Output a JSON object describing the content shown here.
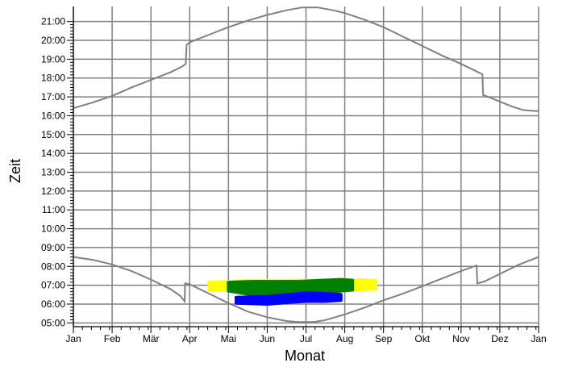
{
  "chart_data": {
    "type": "line",
    "xlabel": "Monat",
    "ylabel": "Zeit",
    "x_ticks": [
      "Jan",
      "Feb",
      "Mär",
      "Apr",
      "Mai",
      "Jun",
      "Jul",
      "Aug",
      "Sep",
      "Okt",
      "Nov",
      "Dez",
      "Jan"
    ],
    "y_ticks": [
      "05:00",
      "06:00",
      "07:00",
      "08:00",
      "09:00",
      "10:00",
      "11:00",
      "12:00",
      "13:00",
      "14:00",
      "15:00",
      "16:00",
      "17:00",
      "18:00",
      "19:00",
      "20:00",
      "21:00"
    ],
    "xlim": [
      0,
      12
    ],
    "ylim": [
      4.8,
      21.8
    ],
    "grid": true,
    "colors": {
      "line": "#808080",
      "grid": "#808080",
      "yellow": "#ffff00",
      "green": "#008000",
      "blue": "#0000ff"
    },
    "series": [
      {
        "kind": "line",
        "values": [
          [
            0.0,
            16.4
          ],
          [
            0.5,
            16.7
          ],
          [
            1.0,
            17.05
          ],
          [
            1.5,
            17.5
          ],
          [
            2.0,
            17.9
          ],
          [
            2.5,
            18.3
          ],
          [
            2.8,
            18.6
          ],
          [
            2.9,
            18.75
          ],
          [
            2.92,
            19.75
          ],
          [
            3.0,
            19.9
          ],
          [
            3.5,
            20.3
          ],
          [
            4.0,
            20.7
          ],
          [
            4.5,
            21.05
          ],
          [
            5.0,
            21.35
          ],
          [
            5.5,
            21.6
          ],
          [
            5.9,
            21.75
          ],
          [
            6.3,
            21.75
          ],
          [
            6.7,
            21.6
          ],
          [
            7.0,
            21.45
          ],
          [
            7.5,
            21.1
          ],
          [
            8.0,
            20.7
          ],
          [
            8.5,
            20.2
          ],
          [
            9.0,
            19.7
          ],
          [
            9.5,
            19.2
          ],
          [
            10.0,
            18.75
          ],
          [
            10.3,
            18.45
          ],
          [
            10.55,
            18.2
          ],
          [
            10.57,
            17.1
          ],
          [
            10.7,
            17.0
          ],
          [
            11.0,
            16.75
          ],
          [
            11.3,
            16.5
          ],
          [
            11.6,
            16.3
          ],
          [
            11.9,
            16.25
          ],
          [
            12.0,
            16.25
          ]
        ]
      },
      {
        "kind": "line",
        "values": [
          [
            0.0,
            8.5
          ],
          [
            0.5,
            8.35
          ],
          [
            1.0,
            8.1
          ],
          [
            1.5,
            7.75
          ],
          [
            2.0,
            7.3
          ],
          [
            2.5,
            6.8
          ],
          [
            2.75,
            6.45
          ],
          [
            2.87,
            6.15
          ],
          [
            2.88,
            7.1
          ],
          [
            3.0,
            7.05
          ],
          [
            3.5,
            6.55
          ],
          [
            4.0,
            6.05
          ],
          [
            4.5,
            5.6
          ],
          [
            5.0,
            5.3
          ],
          [
            5.5,
            5.1
          ],
          [
            5.8,
            5.05
          ],
          [
            6.2,
            5.05
          ],
          [
            6.5,
            5.15
          ],
          [
            7.0,
            5.45
          ],
          [
            7.5,
            5.8
          ],
          [
            8.0,
            6.2
          ],
          [
            8.5,
            6.55
          ],
          [
            9.0,
            6.95
          ],
          [
            9.5,
            7.35
          ],
          [
            10.0,
            7.75
          ],
          [
            10.4,
            8.05
          ],
          [
            10.42,
            7.1
          ],
          [
            10.6,
            7.2
          ],
          [
            11.0,
            7.6
          ],
          [
            11.5,
            8.1
          ],
          [
            12.0,
            8.5
          ]
        ]
      },
      {
        "kind": "band",
        "color": "yellow",
        "values": [
          [
            3.5,
            6.75,
            7.15
          ],
          [
            4.6,
            6.7,
            7.25
          ],
          [
            5.8,
            6.7,
            7.25
          ],
          [
            7.0,
            6.75,
            7.3
          ],
          [
            7.8,
            6.8,
            7.25
          ]
        ]
      },
      {
        "kind": "band",
        "color": "green",
        "values": [
          [
            4.0,
            6.7,
            7.15
          ],
          [
            4.6,
            6.5,
            7.2
          ],
          [
            5.2,
            6.55,
            7.2
          ],
          [
            5.8,
            6.6,
            7.2
          ],
          [
            6.4,
            6.6,
            7.25
          ],
          [
            6.9,
            6.7,
            7.3
          ],
          [
            7.2,
            6.75,
            7.25
          ]
        ]
      },
      {
        "kind": "band",
        "color": "blue",
        "values": [
          [
            4.2,
            6.05,
            6.35
          ],
          [
            5.0,
            6.0,
            6.4
          ],
          [
            5.6,
            6.1,
            6.5
          ],
          [
            6.0,
            6.15,
            6.6
          ],
          [
            6.5,
            6.15,
            6.55
          ],
          [
            6.9,
            6.2,
            6.5
          ]
        ]
      }
    ]
  }
}
